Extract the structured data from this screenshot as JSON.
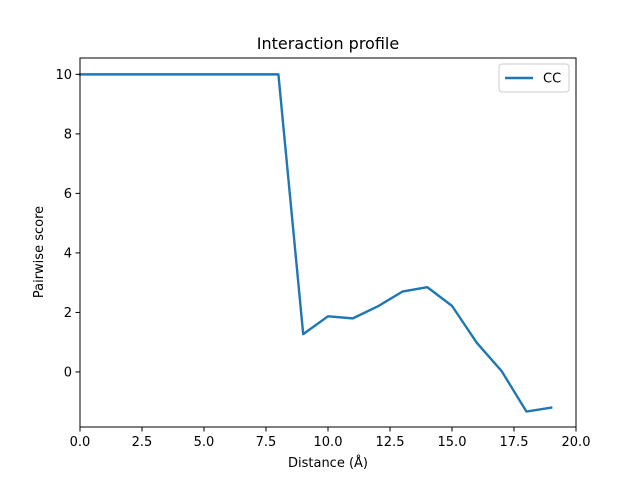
{
  "chart_data": {
    "type": "line",
    "title": "Interaction profile",
    "xlabel": "Distance (Å)",
    "ylabel": "Pairwise score",
    "xlim": [
      0,
      20
    ],
    "ylim": [
      -1.85,
      10.55
    ],
    "xticks": [
      0,
      2.5,
      5,
      7.5,
      10,
      12.5,
      15,
      17.5,
      20
    ],
    "xtick_labels": [
      "0.0",
      "2.5",
      "5.0",
      "7.5",
      "10.0",
      "12.5",
      "15.0",
      "17.5",
      "20.0"
    ],
    "yticks": [
      0,
      2,
      4,
      6,
      8,
      10
    ],
    "ytick_labels": [
      "0",
      "2",
      "4",
      "6",
      "8",
      "10"
    ],
    "grid": false,
    "legend_position": "top-right",
    "series": [
      {
        "name": "CC",
        "color": "#1f77b4",
        "x": [
          0,
          1,
          2,
          3,
          4,
          5,
          6,
          7,
          8,
          9,
          10,
          11,
          12,
          13,
          14,
          15,
          16,
          17,
          18,
          19
        ],
        "y": [
          10,
          10,
          10,
          10,
          10,
          10,
          10,
          10,
          10,
          1.27,
          1.87,
          1.8,
          2.2,
          2.7,
          2.85,
          2.22,
          0.98,
          0.03,
          -1.33,
          -1.2
        ]
      }
    ]
  }
}
